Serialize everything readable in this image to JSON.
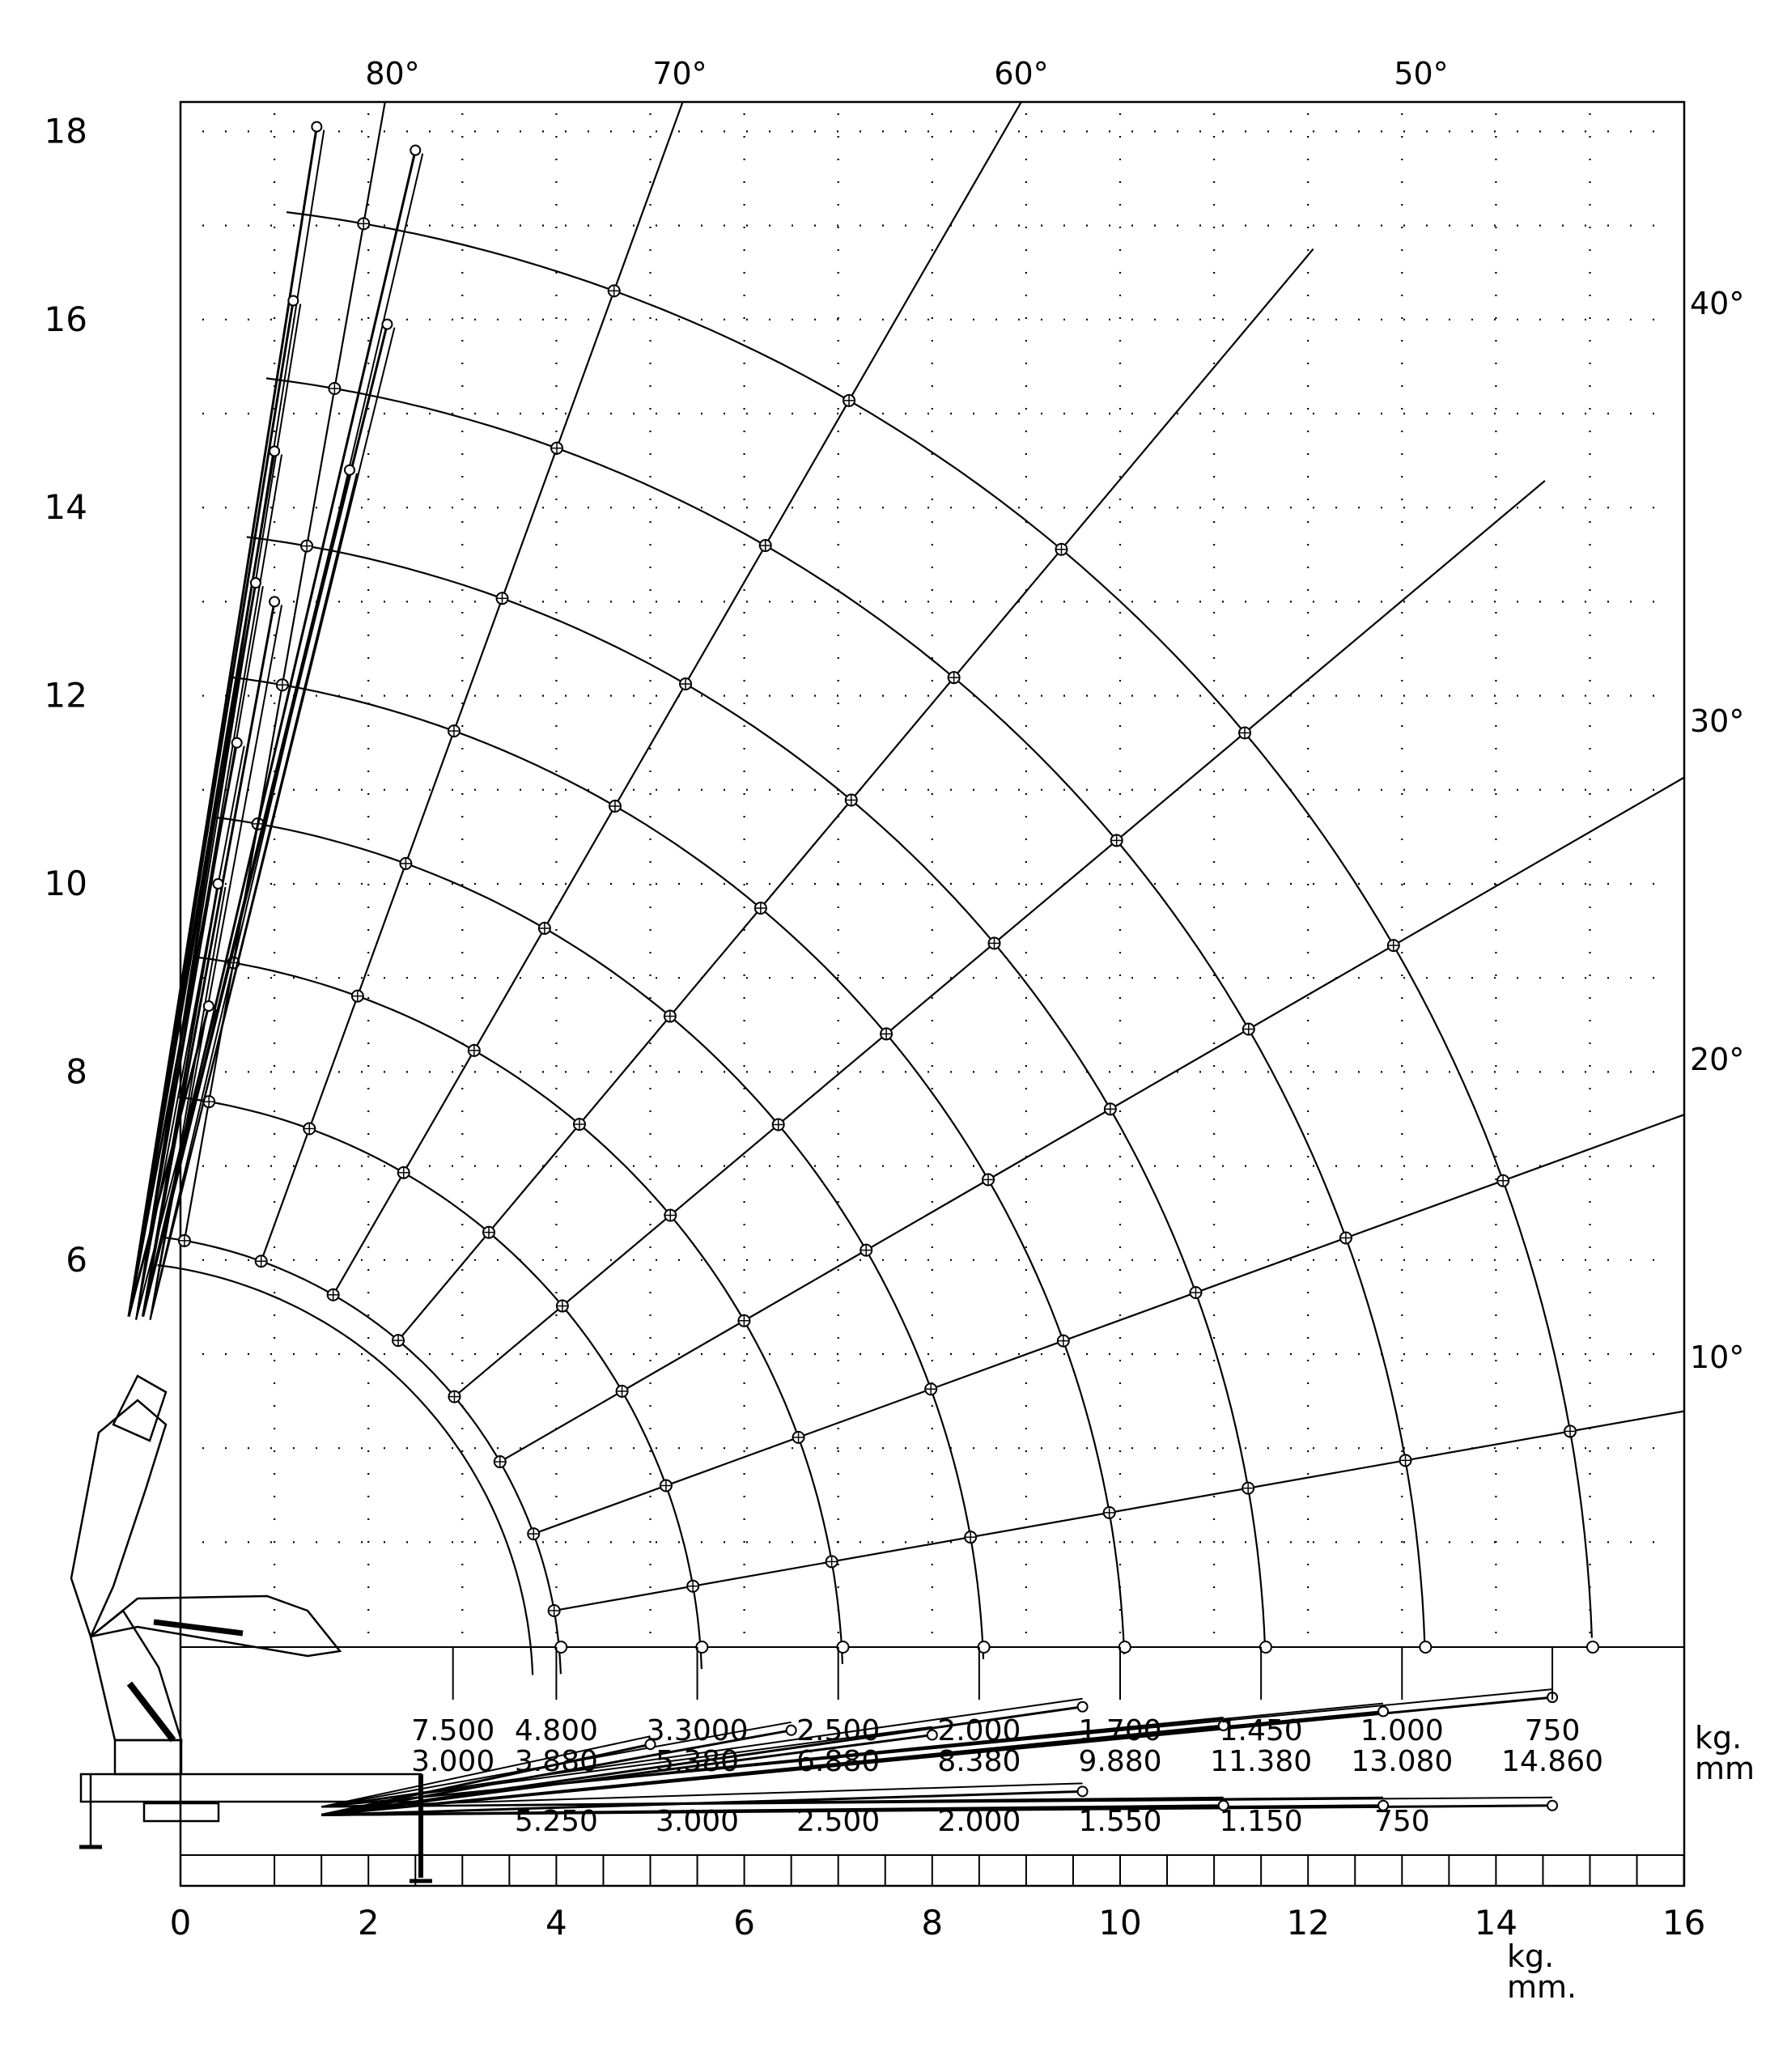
{
  "chart_data": {
    "type": "load-range-diagram",
    "x_axis": {
      "ticks": [
        "0",
        "2",
        "4",
        "6",
        "8",
        "10",
        "12",
        "14",
        "16"
      ],
      "range": [
        0,
        16
      ],
      "unit_label": [
        "kg.",
        "mm."
      ]
    },
    "y_axis": {
      "ticks": [
        "6",
        "8",
        "10",
        "12",
        "14",
        "16",
        "18"
      ],
      "range": [
        0,
        18.8
      ]
    },
    "angle_labels": [
      {
        "text": "80°",
        "deg": 80
      },
      {
        "text": "70°",
        "deg": 70
      },
      {
        "text": "60°",
        "deg": 60
      },
      {
        "text": "50°",
        "deg": 50
      },
      {
        "text": "40°",
        "deg": 40
      },
      {
        "text": "30°",
        "deg": 30
      },
      {
        "text": "20°",
        "deg": 20
      },
      {
        "text": "10°",
        "deg": 10
      }
    ],
    "capacity_table": {
      "unit_label": [
        "kg.",
        "mm"
      ],
      "columns": [
        {
          "x": 2.9,
          "load": "7.500",
          "reach": "3.000",
          "load2": ""
        },
        {
          "x": 4.0,
          "load": "4.800",
          "reach": "3.880",
          "load2": "5.250"
        },
        {
          "x": 5.5,
          "load": "3.3000",
          "reach": "5.380",
          "load2": "3.000"
        },
        {
          "x": 7.0,
          "load": "2.500",
          "reach": "6.880",
          "load2": "2.500"
        },
        {
          "x": 8.5,
          "load": "2.000",
          "reach": "8.380",
          "load2": "2.000"
        },
        {
          "x": 10.0,
          "load": "1.700",
          "reach": "9.880",
          "load2": "1.550"
        },
        {
          "x": 11.5,
          "load": "1.450",
          "reach": "11.380",
          "load2": "1.150"
        },
        {
          "x": 13.0,
          "load": "1.000",
          "reach": "13.080",
          "load2": "750"
        },
        {
          "x": 14.6,
          "load": "750",
          "reach": "14.860",
          "load2": ""
        }
      ]
    },
    "arc_radii": [
      4.85,
      6.35,
      7.85,
      9.35,
      10.85,
      12.35,
      14.05,
      15.83
    ],
    "arc_center": [
      -0.8,
      1.43
    ]
  }
}
